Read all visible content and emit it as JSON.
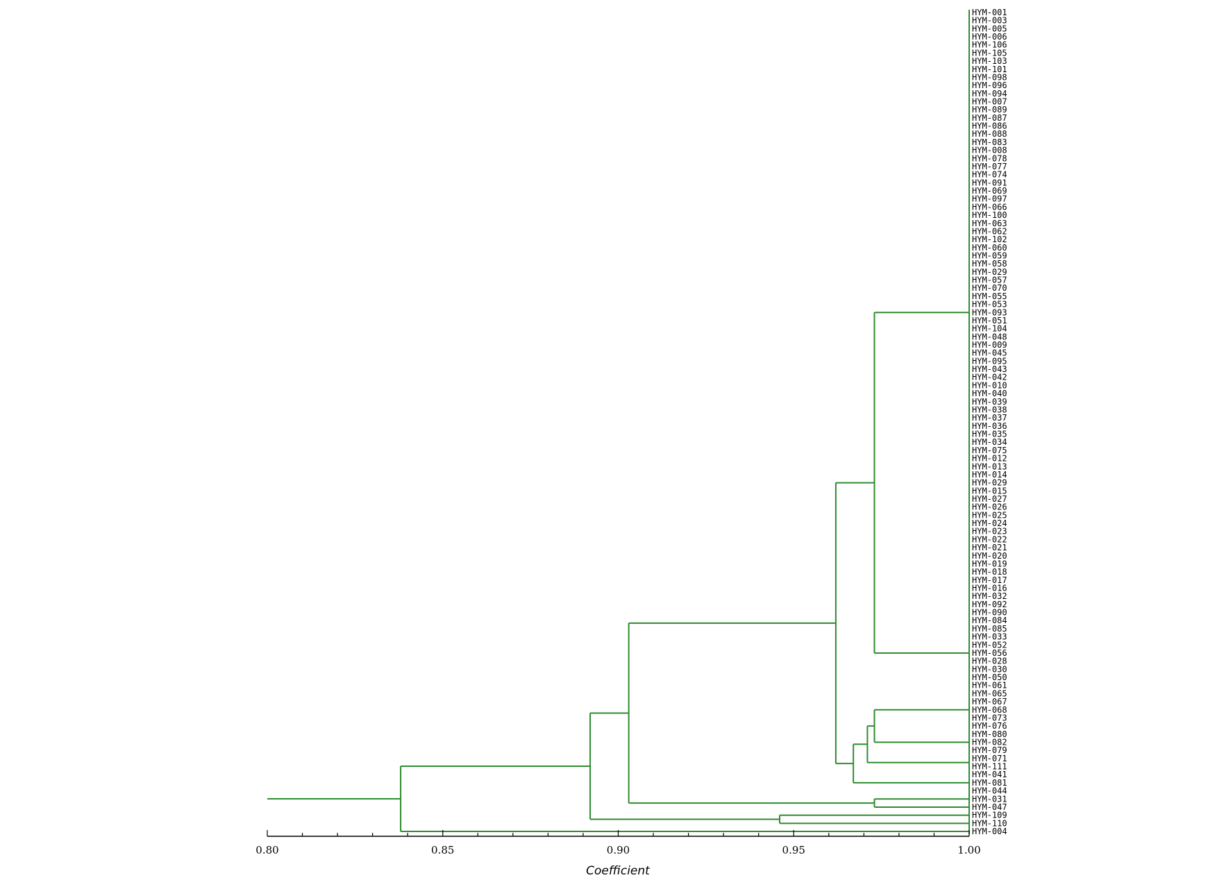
{
  "chart_data": {
    "type": "dendrogram",
    "title": "",
    "xlabel": "Coefficient",
    "xlim": [
      0.8,
      1.0
    ],
    "xticks": [
      "0.80",
      "0.85",
      "0.90",
      "0.95",
      "1.00"
    ],
    "branch_color": "#2e8b2e",
    "leaves": [
      "HYM-001",
      "HYM-003",
      "HYM-005",
      "HYM-006",
      "HYM-106",
      "HYM-105",
      "HYM-103",
      "HYM-101",
      "HYM-098",
      "HYM-096",
      "HYM-094",
      "HYM-007",
      "HYM-089",
      "HYM-087",
      "HYM-086",
      "HYM-088",
      "HYM-083",
      "HYM-008",
      "HYM-078",
      "HYM-077",
      "HYM-074",
      "HYM-091",
      "HYM-069",
      "HYM-097",
      "HYM-066",
      "HYM-100",
      "HYM-063",
      "HYM-062",
      "HYM-102",
      "HYM-060",
      "HYM-059",
      "HYM-058",
      "HYM-029",
      "HYM-057",
      "HYM-070",
      "HYM-055",
      "HYM-053",
      "HYM-093",
      "HYM-051",
      "HYM-104",
      "HYM-048",
      "HYM-009",
      "HYM-045",
      "HYM-095",
      "HYM-043",
      "HYM-042",
      "HYM-010",
      "HYM-040",
      "HYM-039",
      "HYM-038",
      "HYM-037",
      "HYM-036",
      "HYM-035",
      "HYM-034",
      "HYM-075",
      "HYM-012",
      "HYM-013",
      "HYM-014",
      "HYM-029",
      "HYM-015",
      "HYM-027",
      "HYM-026",
      "HYM-025",
      "HYM-024",
      "HYM-023",
      "HYM-022",
      "HYM-021",
      "HYM-020",
      "HYM-019",
      "HYM-018",
      "HYM-017",
      "HYM-016",
      "HYM-032",
      "HYM-092",
      "HYM-090",
      "HYM-084",
      "HYM-085",
      "HYM-033",
      "HYM-052",
      "HYM-056",
      "HYM-028",
      "HYM-030",
      "HYM-050",
      "HYM-061",
      "HYM-065",
      "HYM-067",
      "HYM-068",
      "HYM-073",
      "HYM-076",
      "HYM-080",
      "HYM-082",
      "HYM-079",
      "HYM-071",
      "HYM-111",
      "HYM-041",
      "HYM-081",
      "HYM-044",
      "HYM-031",
      "HYM-047",
      "HYM-109",
      "HYM-110",
      "HYM-004"
    ],
    "clusters": [
      {
        "id": "A",
        "members": [
          0,
          74
        ],
        "height": 1.0
      },
      {
        "id": "B",
        "members": [
          75,
          83
        ],
        "height": 1.0
      },
      {
        "id": "C",
        "members": [
          84,
          88
        ],
        "height": 1.0
      },
      {
        "id": "D",
        "members": [
          89,
          91
        ],
        "height": 1.0
      },
      {
        "id": "E",
        "members": [
          92,
          93
        ],
        "height": 1.0
      },
      {
        "id": "F",
        "members": [
          94,
          96
        ],
        "height": 1.0
      },
      {
        "id": "G",
        "members": [
          97,
          97
        ],
        "height": 1.0
      },
      {
        "id": "H",
        "members": [
          98,
          98
        ],
        "height": 1.0
      },
      {
        "id": "I",
        "members": [
          99,
          99
        ],
        "height": 1.0
      },
      {
        "id": "J",
        "members": [
          100,
          100
        ],
        "height": 1.0
      },
      {
        "id": "K",
        "members": [
          101,
          101
        ],
        "height": 1.0
      }
    ],
    "merges": [
      {
        "id": "AB",
        "children": [
          "A",
          "B"
        ],
        "height": 0.973
      },
      {
        "id": "CD",
        "children": [
          "C",
          "D"
        ],
        "height": 0.973
      },
      {
        "id": "CDE",
        "children": [
          "CD",
          "E"
        ],
        "height": 0.971
      },
      {
        "id": "CDEF",
        "children": [
          "CDE",
          "F"
        ],
        "height": 0.967
      },
      {
        "id": "ABCDEF",
        "children": [
          "AB",
          "CDEF"
        ],
        "height": 0.962
      },
      {
        "id": "GH",
        "children": [
          "G",
          "H"
        ],
        "height": 0.973
      },
      {
        "id": "MAIN",
        "children": [
          "ABCDEF",
          "GH"
        ],
        "height": 0.903
      },
      {
        "id": "IJ",
        "children": [
          "I",
          "J"
        ],
        "height": 0.946
      },
      {
        "id": "MAIN2",
        "children": [
          "MAIN",
          "IJ"
        ],
        "height": 0.892
      },
      {
        "id": "ROOT",
        "children": [
          "MAIN2",
          "K"
        ],
        "height": 0.838
      }
    ],
    "root_extends_to": 0.8
  }
}
